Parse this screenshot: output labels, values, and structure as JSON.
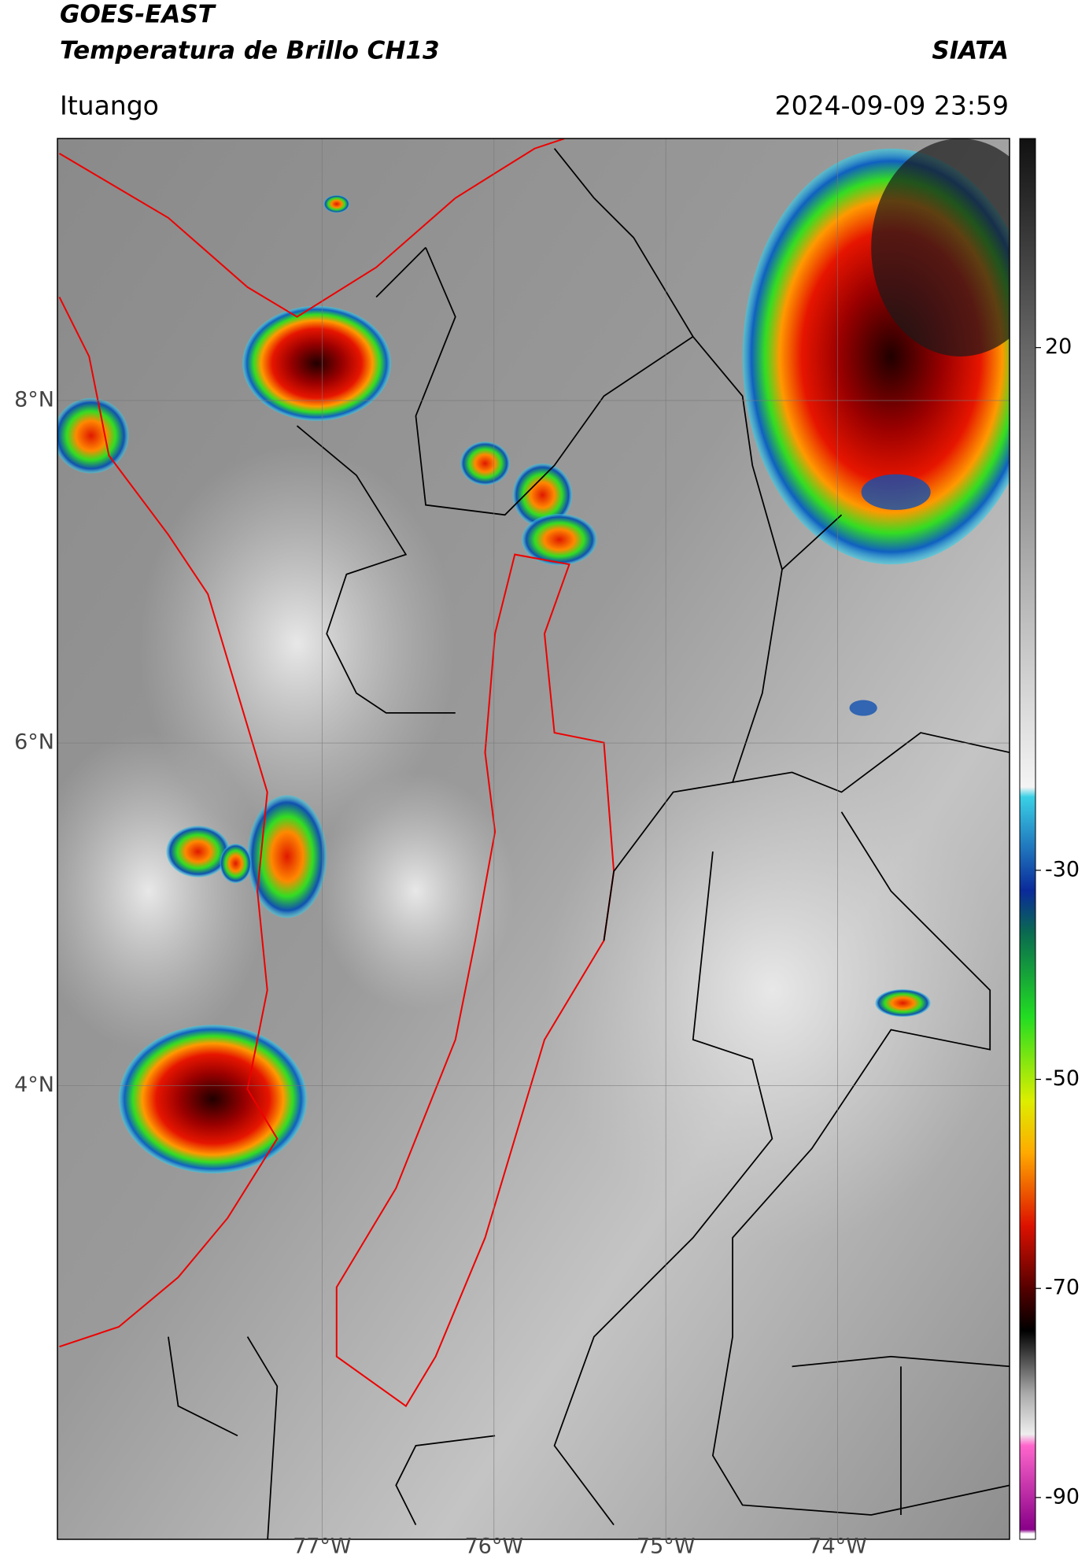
{
  "header": {
    "title": "GOES-EAST",
    "subtitle": "Temperatura de Brillo CH13",
    "source": "SIATA",
    "location": "Ituango",
    "datetime": "2024-09-09 23:59"
  },
  "map": {
    "xlim": [
      -78.54,
      -73.0
    ],
    "ylim": [
      1.35,
      9.53
    ],
    "xticks": [
      {
        "value": -77,
        "label": "77°W"
      },
      {
        "value": -76,
        "label": "76°W"
      },
      {
        "value": -75,
        "label": "75°W"
      },
      {
        "value": -74,
        "label": "74°W"
      }
    ],
    "yticks": [
      {
        "value": 8,
        "label": "8°N"
      },
      {
        "value": 6,
        "label": "6°N"
      },
      {
        "value": 4,
        "label": "4°N"
      }
    ],
    "grid": true
  },
  "colorbar": {
    "clim": [
      -94,
      40
    ],
    "ticks": [
      20,
      -30,
      -50,
      -70,
      -90
    ]
  }
}
